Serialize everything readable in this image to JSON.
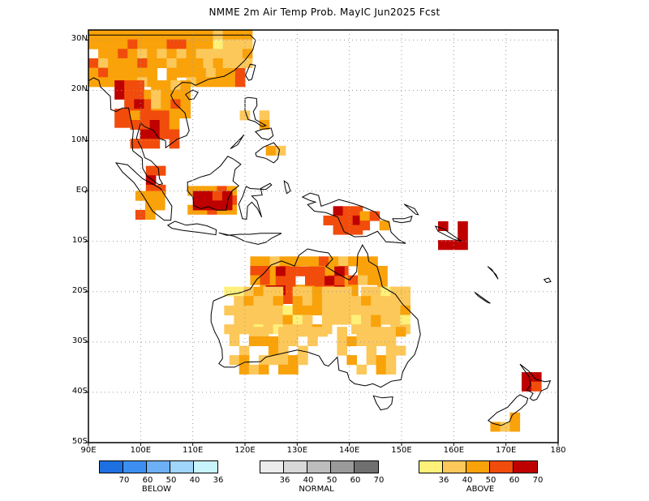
{
  "title": "NMME 2m Air Temp Prob. MayIC  Jun2025 Fcst",
  "y_axis_labels": [
    "30N",
    "20N",
    "10N",
    "EQ",
    "10S",
    "20S",
    "30S",
    "40S",
    "50S"
  ],
  "x_axis_labels": [
    "90E",
    "100E",
    "110E",
    "120E",
    "130E",
    "140E",
    "150E",
    "160E",
    "170E",
    "180"
  ],
  "legend": {
    "below": {
      "title": "BELOW",
      "ticks": [
        "70",
        "60",
        "50",
        "40",
        "36"
      ],
      "colors": [
        "#1e6fe0",
        "#3c8ff0",
        "#6eb0f5",
        "#9fd4fb",
        "#c8f4fc"
      ]
    },
    "normal": {
      "title": "NORMAL",
      "ticks": [
        "36",
        "40",
        "50",
        "60",
        "70"
      ],
      "colors": [
        "#ececec",
        "#d8d8d8",
        "#bdbdbd",
        "#9a9a9a",
        "#707070"
      ]
    },
    "above": {
      "title": "ABOVE",
      "ticks": [
        "36",
        "40",
        "50",
        "60",
        "70"
      ],
      "colors": [
        "#fff07a",
        "#fcc85a",
        "#f9a20a",
        "#f14c0c",
        "#bf0000"
      ]
    }
  },
  "map_extent": {
    "lon": [
      90,
      180
    ],
    "lat": [
      -50,
      32
    ]
  },
  "category_colors": [
    "#fff07a",
    "#fcc85a",
    "#f9a20a",
    "#f14c0c",
    "#bf0000"
  ]
}
